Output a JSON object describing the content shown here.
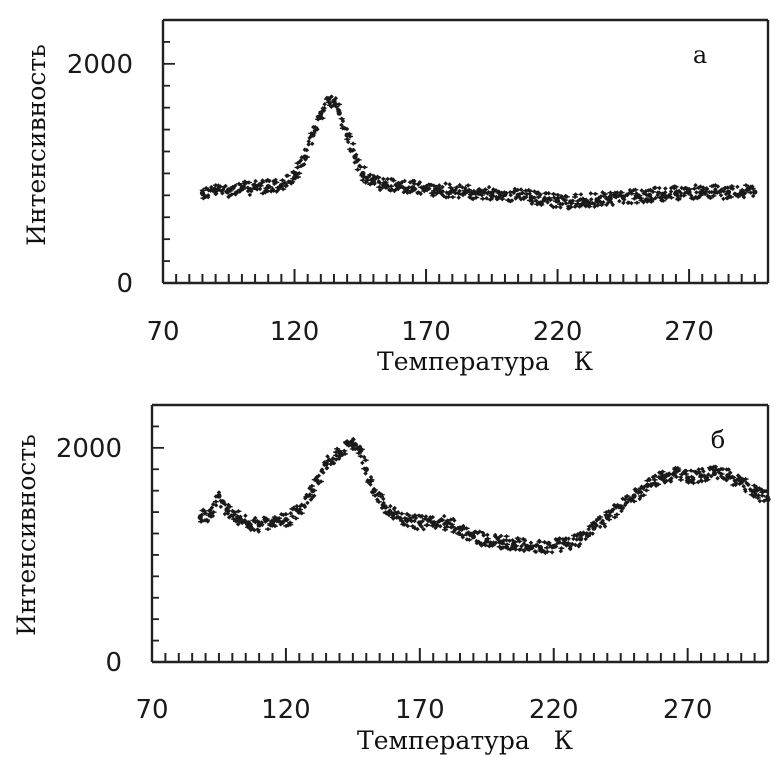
{
  "chart_data": [
    {
      "type": "scatter",
      "panel_label": "а",
      "xlabel": "Температура   К",
      "ylabel": "Интенсивность",
      "xlim": [
        70,
        300
      ],
      "ylim": [
        0,
        2400
      ],
      "x_ticks": [
        "70",
        "120",
        "170",
        "220",
        "270"
      ],
      "y_ticks": [
        "0",
        "2000"
      ],
      "marker_color": "#1a1a1a",
      "series": [
        {
          "x": [
            85,
            90,
            95,
            100,
            105,
            110,
            115,
            120,
            124,
            127,
            130,
            133,
            135,
            137,
            140,
            143,
            146,
            150,
            155,
            160,
            165,
            170,
            175,
            180,
            185,
            190,
            195,
            200,
            205,
            210,
            215,
            220,
            225,
            230,
            235,
            240,
            245,
            250,
            255,
            260,
            265,
            270,
            275,
            280,
            285,
            290,
            295
          ],
          "y": [
            820,
            840,
            850,
            860,
            870,
            880,
            890,
            960,
            1150,
            1350,
            1550,
            1680,
            1660,
            1550,
            1350,
            1150,
            1000,
            920,
            890,
            880,
            870,
            860,
            850,
            840,
            830,
            820,
            820,
            810,
            800,
            780,
            760,
            750,
            740,
            750,
            760,
            770,
            780,
            790,
            800,
            810,
            820,
            830,
            830,
            830,
            830,
            830,
            830
          ]
        }
      ]
    },
    {
      "type": "scatter",
      "panel_label": "б",
      "xlabel": "Температура   К",
      "ylabel": "Интенсивность",
      "xlim": [
        70,
        300
      ],
      "ylim": [
        0,
        2400
      ],
      "x_ticks": [
        "70",
        "120",
        "170",
        "220",
        "270"
      ],
      "y_ticks": [
        "0",
        "2000"
      ],
      "marker_color": "#1a1a1a",
      "series": [
        {
          "x": [
            88,
            92,
            95,
            98,
            102,
            106,
            110,
            115,
            120,
            125,
            130,
            135,
            140,
            145,
            148,
            150,
            153,
            157,
            160,
            165,
            170,
            175,
            180,
            185,
            190,
            195,
            200,
            205,
            210,
            215,
            220,
            225,
            230,
            235,
            240,
            245,
            250,
            255,
            260,
            265,
            270,
            275,
            280,
            285,
            290,
            295,
            300
          ],
          "y": [
            1350,
            1380,
            1550,
            1420,
            1350,
            1300,
            1280,
            1300,
            1330,
            1400,
            1600,
            1850,
            1960,
            2020,
            1980,
            1800,
            1600,
            1450,
            1380,
            1330,
            1300,
            1300,
            1300,
            1250,
            1170,
            1130,
            1120,
            1100,
            1080,
            1070,
            1080,
            1100,
            1150,
            1250,
            1350,
            1450,
            1550,
            1650,
            1720,
            1760,
            1720,
            1740,
            1760,
            1740,
            1680,
            1600,
            1520
          ]
        }
      ]
    }
  ]
}
